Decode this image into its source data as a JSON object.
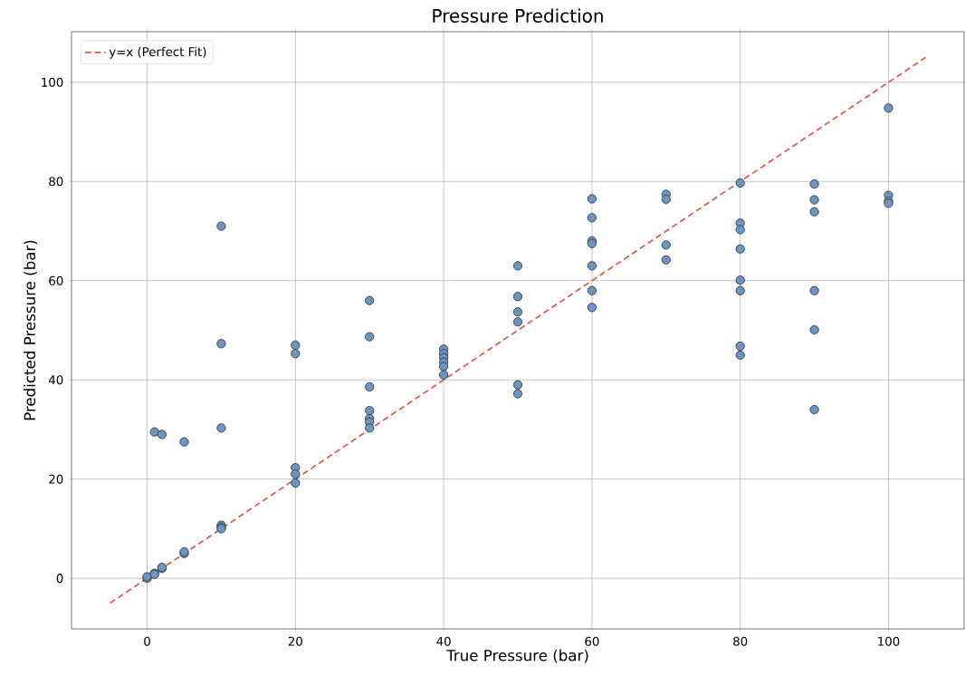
{
  "chart_data": {
    "type": "scatter",
    "title": "Pressure Prediction",
    "xlabel": "True Pressure (bar)",
    "ylabel": "Predicted Pressure (bar)",
    "xlim": [
      -10.2,
      110.2
    ],
    "ylim": [
      -10.2,
      110.2
    ],
    "xticks": [
      0,
      20,
      40,
      60,
      80,
      100
    ],
    "yticks": [
      0,
      20,
      40,
      60,
      80,
      100
    ],
    "grid": true,
    "legend": "top left",
    "marker": "circle",
    "series": [
      {
        "color": "#6b96c3",
        "x": [
          0,
          0,
          1,
          1,
          1,
          2,
          2,
          2,
          5,
          5,
          5,
          10,
          10,
          10,
          10,
          10,
          10,
          20,
          20,
          20,
          20,
          20,
          30,
          30,
          30,
          30,
          30,
          30,
          30,
          40,
          40,
          40,
          40,
          40,
          40,
          50,
          50,
          50,
          50,
          50,
          50,
          60,
          60,
          60,
          60,
          60,
          60,
          60,
          70,
          70,
          70,
          70,
          80,
          80,
          80,
          80,
          80,
          80,
          80,
          80,
          90,
          90,
          90,
          90,
          90,
          90,
          100,
          100,
          100,
          100
        ],
        "values": [
          0,
          0.3,
          29.5,
          1,
          0.8,
          29,
          2,
          2.2,
          27.5,
          5,
          5.3,
          71,
          47.3,
          30.3,
          10.7,
          10.3,
          10,
          47,
          45.3,
          22.3,
          21,
          19.2,
          56,
          48.7,
          38.6,
          33.8,
          32.2,
          31.5,
          30.3,
          46.2,
          45.3,
          44.5,
          43.6,
          42.7,
          41,
          63,
          56.8,
          53.7,
          51.7,
          39,
          37.2,
          76.5,
          72.7,
          68,
          67.5,
          63,
          58,
          54.6,
          77.4,
          76.4,
          67.2,
          64.2,
          79.7,
          71.6,
          70.3,
          66.4,
          60.1,
          58,
          46.8,
          45,
          79.5,
          76.3,
          73.9,
          58,
          50.1,
          34,
          94.8,
          77.2,
          76,
          75.6
        ]
      },
      {
        "type": "line",
        "name": "y=x (Perfect Fit)",
        "color": "#e05a4f",
        "line_style": "dashed",
        "marker": "none",
        "x": [
          -5,
          105
        ],
        "values": [
          -5,
          105
        ]
      }
    ]
  }
}
